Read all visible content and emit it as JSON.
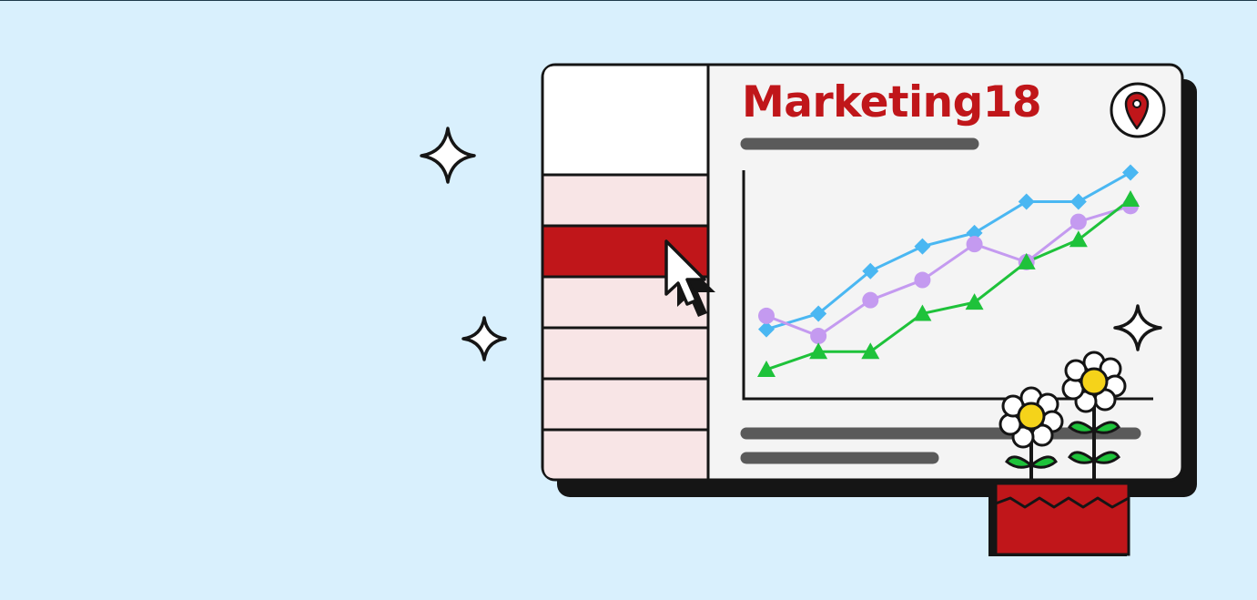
{
  "title": "Marketing18",
  "colors": {
    "background": "#d9f0fd",
    "title": "#c0161a",
    "panel": "#f4f4f4",
    "sidebar_row": "#f8e5e6",
    "sidebar_active": "#c0161a",
    "outline": "#151515",
    "text_placeholder": "#5a5a5a"
  },
  "icons": {
    "location": "map-pin-icon",
    "cursor": "mouse-pointer-icon",
    "sparkle": "sparkle-icon",
    "flower": "daisy-flower-icon"
  },
  "sidebar": {
    "rows": 6,
    "active_row": 2
  },
  "chart_data": {
    "type": "line",
    "x": [
      1,
      2,
      3,
      4,
      5,
      6,
      7,
      8
    ],
    "ylim": [
      0,
      10
    ],
    "grid": false,
    "legend": "none",
    "series": [
      {
        "values": [
          2.9,
          3.6,
          5.5,
          6.6,
          7.2,
          8.6,
          8.6,
          9.9
        ],
        "color": "#4ab7f2",
        "marker": "diamond"
      },
      {
        "values": [
          3.5,
          2.6,
          4.2,
          5.1,
          6.7,
          5.9,
          7.7,
          8.4
        ],
        "color": "#c49af0",
        "marker": "circle"
      },
      {
        "values": [
          1.1,
          1.9,
          1.9,
          3.6,
          4.1,
          5.9,
          6.9,
          8.7
        ],
        "color": "#1ec23a",
        "marker": "triangle"
      }
    ]
  }
}
